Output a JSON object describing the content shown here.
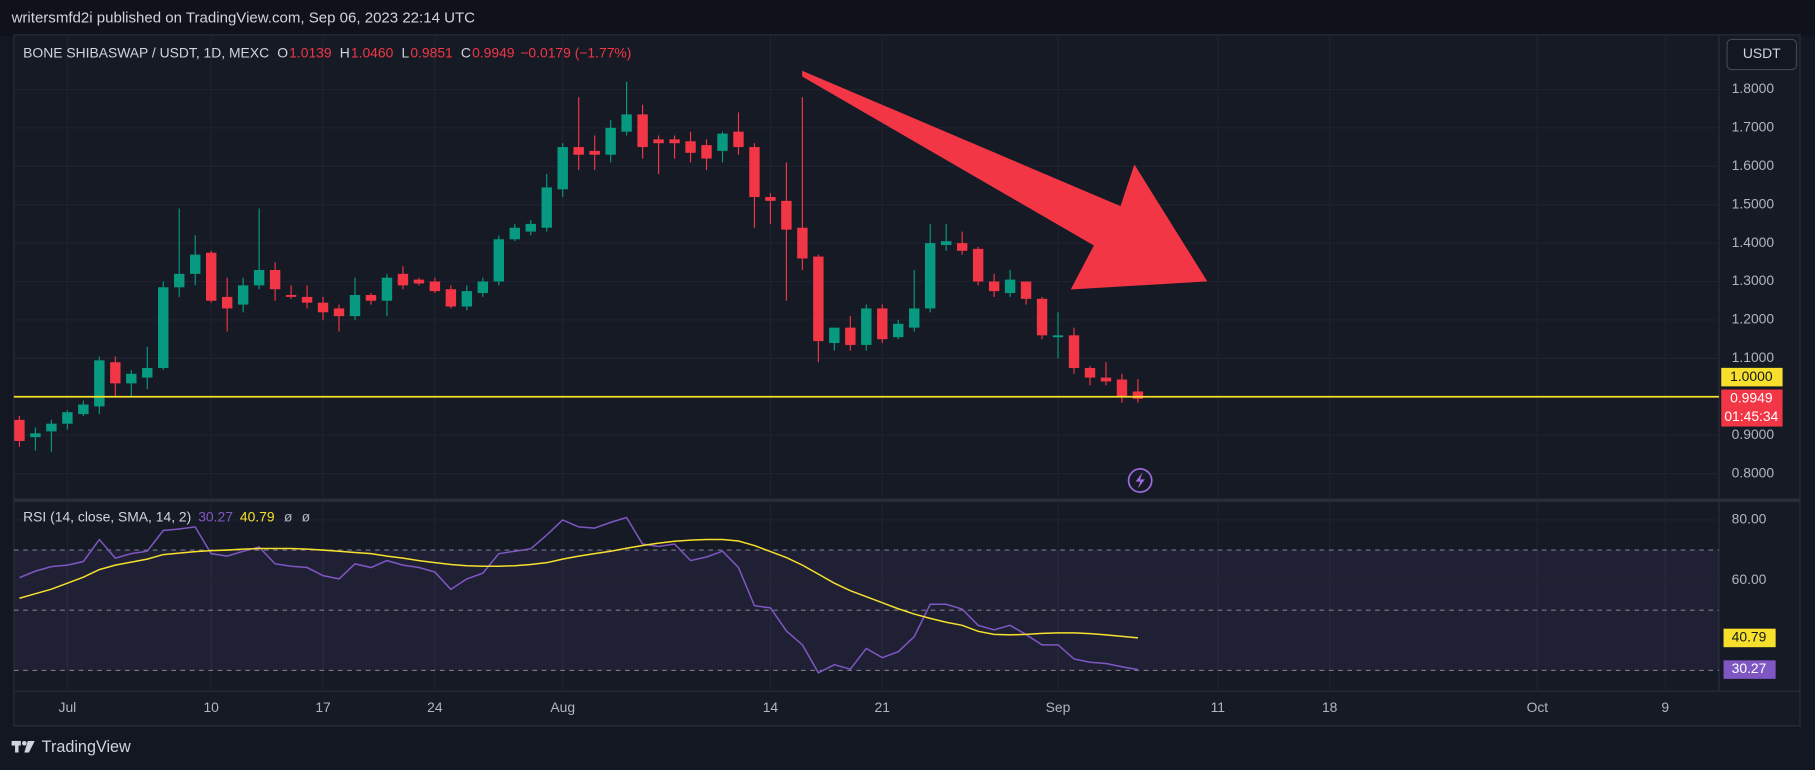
{
  "header": {
    "publisher": "writersmfd2i published on TradingView.com, Sep 06, 2023 22:14 UTC",
    "footer": "TradingView",
    "currency": "USDT"
  },
  "chart_data": [
    {
      "type": "candlestick",
      "title": "BONE SHIBASWAP / USDT, 1D, MEXC",
      "ohlc_legend": [
        {
          "label": "O",
          "value": "1.0139"
        },
        {
          "label": "H",
          "value": "1.0460"
        },
        {
          "label": "L",
          "value": "0.9851"
        },
        {
          "label": "C",
          "value": "0.9949"
        }
      ],
      "change": "−0.0179 (−1.77%)",
      "x": [
        "2023-06-28",
        "2023-06-29",
        "2023-06-30",
        "2023-07-01",
        "2023-07-02",
        "2023-07-03",
        "2023-07-04",
        "2023-07-05",
        "2023-07-06",
        "2023-07-07",
        "2023-07-08",
        "2023-07-09",
        "2023-07-10",
        "2023-07-11",
        "2023-07-12",
        "2023-07-13",
        "2023-07-14",
        "2023-07-15",
        "2023-07-16",
        "2023-07-17",
        "2023-07-18",
        "2023-07-19",
        "2023-07-20",
        "2023-07-21",
        "2023-07-22",
        "2023-07-23",
        "2023-07-24",
        "2023-07-25",
        "2023-07-26",
        "2023-07-27",
        "2023-07-28",
        "2023-07-29",
        "2023-07-30",
        "2023-07-31",
        "2023-08-01",
        "2023-08-02",
        "2023-08-03",
        "2023-08-04",
        "2023-08-05",
        "2023-08-06",
        "2023-08-07",
        "2023-08-08",
        "2023-08-09",
        "2023-08-10",
        "2023-08-11",
        "2023-08-12",
        "2023-08-13",
        "2023-08-14",
        "2023-08-15",
        "2023-08-16",
        "2023-08-17",
        "2023-08-18",
        "2023-08-19",
        "2023-08-20",
        "2023-08-21",
        "2023-08-22",
        "2023-08-23",
        "2023-08-24",
        "2023-08-25",
        "2023-08-26",
        "2023-08-27",
        "2023-08-28",
        "2023-08-29",
        "2023-08-30",
        "2023-08-31",
        "2023-09-01",
        "2023-09-02",
        "2023-09-03",
        "2023-09-04",
        "2023-09-05",
        "2023-09-06"
      ],
      "open": [
        0.94,
        0.895,
        0.91,
        0.93,
        0.955,
        0.975,
        1.09,
        1.035,
        1.05,
        1.075,
        1.285,
        1.32,
        1.375,
        1.26,
        1.24,
        1.29,
        1.33,
        1.265,
        1.26,
        1.245,
        1.23,
        1.21,
        1.265,
        1.25,
        1.32,
        1.305,
        1.3,
        1.28,
        1.235,
        1.27,
        1.3,
        1.41,
        1.43,
        1.44,
        1.54,
        1.65,
        1.64,
        1.63,
        1.69,
        1.735,
        1.67,
        1.67,
        1.665,
        1.655,
        1.64,
        1.69,
        1.65,
        1.52,
        1.51,
        1.44,
        1.365,
        1.14,
        1.18,
        1.135,
        1.23,
        1.155,
        1.18,
        1.23,
        1.395,
        1.4,
        1.385,
        1.3,
        1.27,
        1.3,
        1.255,
        1.155,
        1.16,
        1.075,
        1.05,
        1.045,
        1.0139
      ],
      "high": [
        0.95,
        0.92,
        0.94,
        0.965,
        0.99,
        1.105,
        1.105,
        1.07,
        1.13,
        1.3,
        1.49,
        1.42,
        1.38,
        1.31,
        1.31,
        1.49,
        1.35,
        1.29,
        1.29,
        1.26,
        1.24,
        1.31,
        1.27,
        1.32,
        1.34,
        1.31,
        1.31,
        1.29,
        1.29,
        1.31,
        1.42,
        1.45,
        1.46,
        1.58,
        1.66,
        1.78,
        1.68,
        1.72,
        1.82,
        1.76,
        1.68,
        1.68,
        1.69,
        1.67,
        1.69,
        1.74,
        1.66,
        1.53,
        1.61,
        1.78,
        1.37,
        1.18,
        1.21,
        1.24,
        1.24,
        1.2,
        1.33,
        1.45,
        1.45,
        1.43,
        1.39,
        1.32,
        1.33,
        1.3,
        1.26,
        1.22,
        1.18,
        1.08,
        1.09,
        1.06,
        1.046
      ],
      "low": [
        0.87,
        0.86,
        0.857,
        0.915,
        0.95,
        0.955,
        1.0,
        1.0,
        1.02,
        1.07,
        1.26,
        1.29,
        1.245,
        1.17,
        1.22,
        1.28,
        1.25,
        1.255,
        1.23,
        1.2,
        1.17,
        1.2,
        1.24,
        1.21,
        1.28,
        1.29,
        1.27,
        1.23,
        1.225,
        1.26,
        1.29,
        1.405,
        1.42,
        1.43,
        1.52,
        1.59,
        1.59,
        1.61,
        1.68,
        1.62,
        1.58,
        1.62,
        1.61,
        1.59,
        1.61,
        1.63,
        1.44,
        1.45,
        1.25,
        1.33,
        1.09,
        1.12,
        1.12,
        1.12,
        1.14,
        1.15,
        1.17,
        1.22,
        1.38,
        1.37,
        1.29,
        1.26,
        1.26,
        1.24,
        1.15,
        1.1,
        1.06,
        1.03,
        1.03,
        0.985,
        0.9851
      ],
      "close": [
        0.885,
        0.905,
        0.93,
        0.96,
        0.98,
        1.095,
        1.035,
        1.06,
        1.075,
        1.285,
        1.32,
        1.37,
        1.25,
        1.23,
        1.29,
        1.33,
        1.28,
        1.26,
        1.245,
        1.22,
        1.21,
        1.265,
        1.25,
        1.31,
        1.29,
        1.295,
        1.275,
        1.235,
        1.275,
        1.3,
        1.41,
        1.44,
        1.45,
        1.545,
        1.65,
        1.63,
        1.63,
        1.7,
        1.735,
        1.65,
        1.66,
        1.66,
        1.635,
        1.62,
        1.685,
        1.65,
        1.52,
        1.51,
        1.435,
        1.36,
        1.145,
        1.18,
        1.135,
        1.23,
        1.15,
        1.19,
        1.23,
        1.4,
        1.405,
        1.38,
        1.3,
        1.275,
        1.305,
        1.255,
        1.16,
        1.16,
        1.075,
        1.05,
        1.04,
        1.0,
        0.9949
      ],
      "up_color": "#089981",
      "down_color": "#f23645",
      "xlim": [
        "2023-06-27",
        "2023-10-12"
      ],
      "xticks": [
        {
          "value": "2023-07-01",
          "label": "Jul"
        },
        {
          "value": "2023-07-10",
          "label": "10"
        },
        {
          "value": "2023-07-17",
          "label": "17"
        },
        {
          "value": "2023-07-24",
          "label": "24"
        },
        {
          "value": "2023-08-01",
          "label": "Aug"
        },
        {
          "value": "2023-08-14",
          "label": "14"
        },
        {
          "value": "2023-08-21",
          "label": "21"
        },
        {
          "value": "2023-09-01",
          "label": "Sep"
        },
        {
          "value": "2023-09-11",
          "label": "11"
        },
        {
          "value": "2023-09-18",
          "label": "18"
        },
        {
          "value": "2023-10-01",
          "label": "Oct"
        },
        {
          "value": "2023-10-09",
          "label": "9"
        }
      ],
      "ylim": [
        0.737,
        1.942
      ],
      "yticks": [
        {
          "value": 0.8,
          "label": "0.8000"
        },
        {
          "value": 0.9,
          "label": "0.9000"
        },
        {
          "value": 1.1,
          "label": "1.1000"
        },
        {
          "value": 1.2,
          "label": "1.2000"
        },
        {
          "value": 1.3,
          "label": "1.3000"
        },
        {
          "value": 1.4,
          "label": "1.4000"
        },
        {
          "value": 1.5,
          "label": "1.5000"
        },
        {
          "value": 1.6,
          "label": "1.6000"
        },
        {
          "value": 1.7,
          "label": "1.7000"
        },
        {
          "value": 1.8,
          "label": "1.8000"
        }
      ],
      "grid": true,
      "hline": {
        "value": 1,
        "label": "1.0000",
        "color": "#f7e02b"
      },
      "last_price": {
        "label": "0.9949",
        "countdown": "01:45:34"
      }
    },
    {
      "type": "line",
      "title": "RSI (14, close, SMA, 14, 2)",
      "legend_extra": [
        "ø",
        "ø"
      ],
      "series": [
        {
          "color": "#7e57c2",
          "last_label": "30.27",
          "values": [
            60.8,
            63,
            64.5,
            65,
            66.2,
            73.5,
            67.3,
            68.8,
            69.6,
            76.5,
            77,
            77.7,
            68.8,
            68,
            69.6,
            71,
            65.4,
            64.6,
            64.2,
            61.5,
            60.4,
            65.4,
            64.2,
            66.5,
            65,
            64.2,
            62.7,
            56.9,
            60.4,
            62.3,
            68.8,
            69.6,
            70.4,
            75,
            80,
            77.7,
            77.3,
            79.2,
            80.8,
            72,
            71.2,
            72,
            66.5,
            67.7,
            69.6,
            64.2,
            51.5,
            50.8,
            43.1,
            38.5,
            29.2,
            31.9,
            30.4,
            37.3,
            34.2,
            36.2,
            41.2,
            52,
            52,
            50.4,
            45,
            43.5,
            45,
            41.9,
            38.5,
            38.5,
            33.8,
            32.7,
            32.3,
            31.2,
            30.27
          ]
        },
        {
          "color": "#f7e02b",
          "last_label": "40.79",
          "values": [
            54,
            55.5,
            57,
            59,
            61,
            63.5,
            65,
            66,
            67,
            68.5,
            69,
            69.5,
            69.8,
            70,
            70.3,
            70.5,
            70.5,
            70.5,
            70.3,
            70,
            69.6,
            69.2,
            68.8,
            68,
            67.3,
            66.5,
            65.8,
            65.2,
            64.8,
            64.6,
            64.6,
            64.8,
            65.2,
            65.8,
            67,
            68,
            68.8,
            69.6,
            70.6,
            71.5,
            72.3,
            72.9,
            73.3,
            73.5,
            73.5,
            73,
            71.5,
            69.5,
            67.5,
            65,
            62,
            59,
            56.5,
            54.5,
            52.5,
            50.5,
            48.7,
            47.3,
            46,
            45,
            43,
            42,
            41.8,
            42,
            42.3,
            42.5,
            42.5,
            42.2,
            41.8,
            41.3,
            40.79
          ]
        }
      ],
      "ylim": [
        23.1,
        85.8
      ],
      "yticks": [
        {
          "value": 60,
          "label": "60.00"
        },
        {
          "value": 80,
          "label": "80.00"
        }
      ],
      "levels": [
        70,
        50,
        30
      ],
      "band_color": "#7e57c2"
    }
  ]
}
